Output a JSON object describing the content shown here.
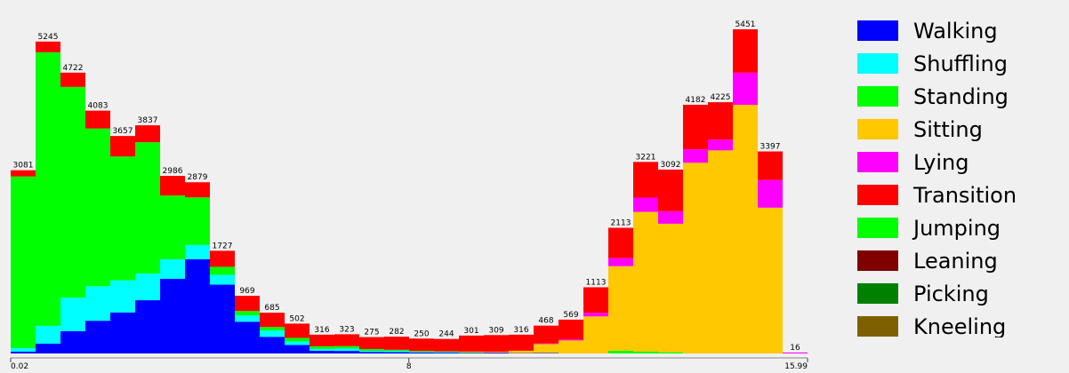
{
  "chart_data": {
    "type": "stacked-histogram",
    "xlim": [
      0.02,
      15.99
    ],
    "xticks": [
      0.02,
      8,
      15.99
    ],
    "totals": [
      3081,
      5245,
      4722,
      4083,
      3657,
      3837,
      2986,
      2879,
      1727,
      969,
      685,
      502,
      316,
      323,
      275,
      282,
      250,
      244,
      301,
      309,
      316,
      468,
      569,
      1113,
      2113,
      3221,
      3092,
      4182,
      4225,
      5451,
      3397,
      16
    ],
    "series": [
      {
        "name": "Walking",
        "color": "#0000ff",
        "values": [
          30,
          165,
          375,
          550,
          690,
          895,
          1255,
          1585,
          1157,
          534,
          280,
          142,
          46,
          43,
          25,
          22,
          15,
          14,
          11,
          14,
          6,
          8,
          0,
          0,
          0,
          0,
          0,
          0,
          0,
          0,
          0,
          0
        ]
      },
      {
        "name": "Shuffling",
        "color": "#00ffff",
        "values": [
          60,
          300,
          565,
          580,
          540,
          450,
          330,
          240,
          165,
          105,
          105,
          60,
          30,
          40,
          20,
          20,
          10,
          10,
          0,
          0,
          0,
          0,
          0,
          0,
          0,
          0,
          0,
          0,
          0,
          0,
          0,
          0
        ]
      },
      {
        "name": "Standing",
        "color": "#00ff00",
        "values": [
          2886,
          4600,
          3542,
          2653,
          2082,
          2207,
          1071,
          799,
          135,
          75,
          60,
          60,
          45,
          40,
          30,
          20,
          15,
          10,
          10,
          0,
          0,
          0,
          0,
          0,
          45,
          30,
          20,
          0,
          0,
          0,
          0,
          0
        ]
      },
      {
        "name": "Sitting",
        "color": "#ffc800",
        "values": [
          0,
          0,
          0,
          0,
          0,
          0,
          0,
          0,
          0,
          0,
          0,
          0,
          0,
          0,
          0,
          0,
          0,
          0,
          10,
          15,
          40,
          150,
          219,
          623,
          1423,
          2351,
          2162,
          3207,
          3415,
          4181,
          2452,
          0
        ]
      },
      {
        "name": "Lying",
        "color": "#ff00ff",
        "values": [
          0,
          0,
          0,
          0,
          0,
          0,
          0,
          0,
          0,
          0,
          0,
          0,
          0,
          0,
          0,
          0,
          0,
          0,
          0,
          0,
          0,
          10,
          20,
          60,
          135,
          240,
          210,
          225,
          180,
          540,
          465,
          16
        ]
      },
      {
        "name": "Transition",
        "color": "#ff0000",
        "values": [
          105,
          180,
          240,
          300,
          345,
          285,
          330,
          255,
          270,
          255,
          240,
          240,
          195,
          200,
          200,
          220,
          210,
          210,
          270,
          280,
          270,
          300,
          330,
          430,
          510,
          600,
          700,
          750,
          630,
          730,
          480,
          0
        ]
      },
      {
        "name": "Jumping",
        "color": "#00ff00",
        "values": [
          0,
          0,
          0,
          0,
          0,
          0,
          0,
          0,
          0,
          0,
          0,
          0,
          0,
          0,
          0,
          0,
          0,
          0,
          0,
          0,
          0,
          0,
          0,
          0,
          0,
          0,
          0,
          0,
          0,
          0,
          0,
          0
        ]
      },
      {
        "name": "Leaning",
        "color": "#800000",
        "values": [
          0,
          0,
          0,
          0,
          0,
          0,
          0,
          0,
          0,
          0,
          0,
          0,
          0,
          0,
          0,
          0,
          0,
          0,
          0,
          0,
          0,
          0,
          0,
          0,
          0,
          0,
          0,
          0,
          0,
          0,
          0,
          0
        ]
      },
      {
        "name": "Picking",
        "color": "#008000",
        "values": [
          0,
          0,
          0,
          0,
          0,
          0,
          0,
          0,
          0,
          0,
          0,
          0,
          0,
          0,
          0,
          0,
          0,
          0,
          0,
          0,
          0,
          0,
          0,
          0,
          0,
          0,
          0,
          0,
          0,
          0,
          0,
          0
        ]
      },
      {
        "name": "Kneeling",
        "color": "#7f6000",
        "values": [
          0,
          0,
          0,
          0,
          0,
          0,
          0,
          0,
          0,
          0,
          0,
          0,
          0,
          0,
          0,
          0,
          0,
          0,
          0,
          0,
          0,
          0,
          0,
          0,
          0,
          0,
          0,
          0,
          0,
          0,
          0,
          0
        ]
      }
    ]
  }
}
